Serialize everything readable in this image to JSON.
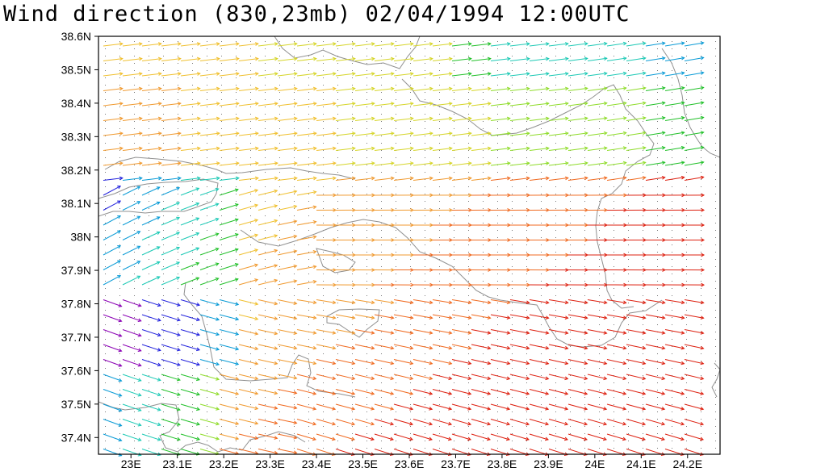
{
  "title": "Wind direction (830,23mb) 02/04/1994 12:00UTC",
  "map": {
    "lon_range": [
      22.93,
      24.27
    ],
    "lat_range": [
      37.35,
      38.6
    ],
    "lat_labels": [
      {
        "value": 38.6,
        "text": "38.6N"
      },
      {
        "value": 38.5,
        "text": "38.5N"
      },
      {
        "value": 38.4,
        "text": "38.4N"
      },
      {
        "value": 38.3,
        "text": "38.3N"
      },
      {
        "value": 38.2,
        "text": "38.2N"
      },
      {
        "value": 38.1,
        "text": "38.1N"
      },
      {
        "value": 38.0,
        "text": "38N"
      },
      {
        "value": 37.9,
        "text": "37.9N"
      },
      {
        "value": 37.8,
        "text": "37.8N"
      },
      {
        "value": 37.7,
        "text": "37.7N"
      },
      {
        "value": 37.6,
        "text": "37.6N"
      },
      {
        "value": 37.5,
        "text": "37.5N"
      },
      {
        "value": 37.4,
        "text": "37.4N"
      }
    ],
    "lon_labels": [
      {
        "value": 23.0,
        "text": "23E"
      },
      {
        "value": 23.1,
        "text": "23.1E"
      },
      {
        "value": 23.2,
        "text": "23.2E"
      },
      {
        "value": 23.3,
        "text": "23.3E"
      },
      {
        "value": 23.4,
        "text": "23.4E"
      },
      {
        "value": 23.5,
        "text": "23.5E"
      },
      {
        "value": 23.6,
        "text": "23.6E"
      },
      {
        "value": 23.7,
        "text": "23.7E"
      },
      {
        "value": 23.8,
        "text": "23.8E"
      },
      {
        "value": 23.9,
        "text": "23.9E"
      },
      {
        "value": 24.0,
        "text": "24E"
      },
      {
        "value": 24.1,
        "text": "24.1E"
      },
      {
        "value": 24.2,
        "text": "24.2E"
      }
    ],
    "color_scale": [
      "#8a00b4",
      "#2222dd",
      "#0a9bd6",
      "#1cc9b5",
      "#22c02a",
      "#8fdc2a",
      "#d6d52a",
      "#f0c030",
      "#f09a30",
      "#f06a20",
      "#dd2010"
    ],
    "coastline_color": "#909090"
  }
}
